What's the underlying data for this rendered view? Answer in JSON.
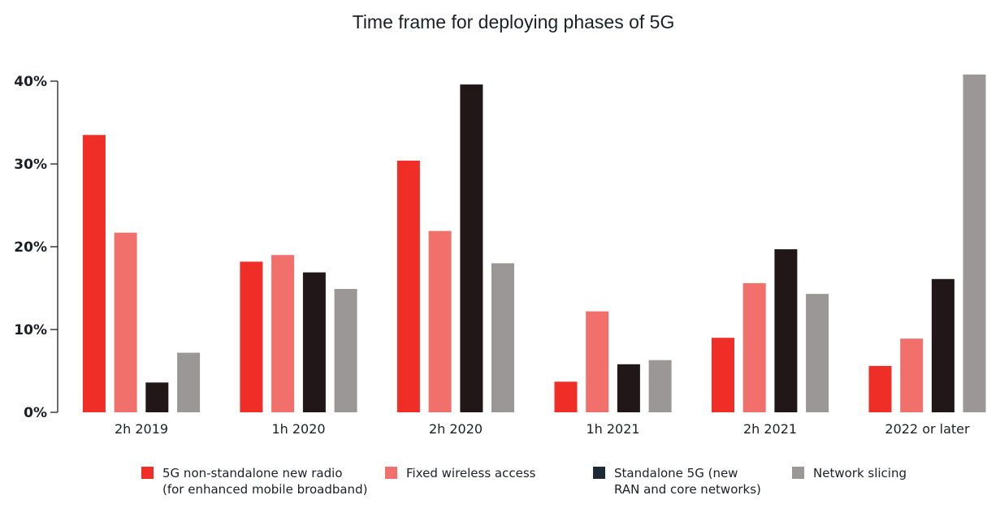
{
  "chart_data": {
    "type": "bar",
    "title": "Time frame for deploying phases of 5G",
    "xlabel": "",
    "ylabel": "",
    "ylim": [
      0,
      40
    ],
    "yticks": [
      0,
      10,
      20,
      30,
      40
    ],
    "ytick_labels": [
      "0%",
      "10%",
      "20%",
      "30%",
      "40%"
    ],
    "grid": false,
    "legend_position": "bottom",
    "categories": [
      "2h 2019",
      "1h 2020",
      "2h 2020",
      "1h 2021",
      "2h 2021",
      "2022 or later"
    ],
    "series": [
      {
        "name": "5G non-standalone new radio\n(for enhanced mobile broadband)",
        "color": "#EE2E27",
        "values": [
          33.5,
          18.2,
          30.4,
          3.7,
          9.0,
          5.6
        ]
      },
      {
        "name": "Fixed wireless access",
        "color": "#F1706B",
        "values": [
          21.7,
          19.0,
          21.9,
          12.2,
          15.6,
          8.9
        ]
      },
      {
        "name": "Standalone 5G (new\nRAN and core networks)",
        "color": "#221718",
        "legend_color": "#1E2A35",
        "values": [
          3.6,
          16.9,
          39.6,
          5.8,
          19.7,
          16.1
        ]
      },
      {
        "name": "Network slicing",
        "color": "#9B9796",
        "values": [
          7.2,
          14.9,
          18.0,
          6.3,
          14.3,
          40.8
        ]
      }
    ]
  }
}
